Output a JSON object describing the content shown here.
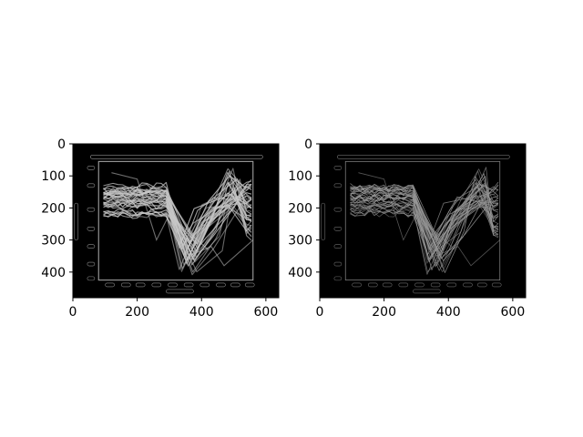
{
  "figure": {
    "background": "#ffffff",
    "panels": 2
  },
  "chart_data": [
    {
      "type": "image",
      "title": "",
      "xlabel": "",
      "ylabel": "",
      "xlim": [
        0,
        640
      ],
      "ylim": [
        480,
        0
      ],
      "x_ticks": [
        0,
        200,
        400,
        600
      ],
      "y_ticks": [
        0,
        100,
        200,
        300,
        400
      ],
      "x_tick_labels": [
        "0",
        "200",
        "400",
        "600"
      ],
      "y_tick_labels": [
        "0",
        "100",
        "200",
        "300",
        "400"
      ],
      "image_content": "edge-detected (Sobel magnitude) line chart, brighter edges",
      "image_background": "#000000",
      "edge_color": "#c8c8c8"
    },
    {
      "type": "image",
      "title": "",
      "xlabel": "",
      "ylabel": "",
      "xlim": [
        0,
        640
      ],
      "ylim": [
        480,
        0
      ],
      "x_ticks": [
        0,
        200,
        400,
        600
      ],
      "y_ticks": [
        0,
        100,
        200,
        300,
        400
      ],
      "x_tick_labels": [
        "0",
        "200",
        "400",
        "600"
      ],
      "y_tick_labels": [
        "0",
        "100",
        "200",
        "300",
        "400"
      ],
      "image_content": "edge-detected line chart, thinner/fainter edges",
      "image_background": "#000000",
      "edge_color": "#9a9a9a"
    }
  ]
}
